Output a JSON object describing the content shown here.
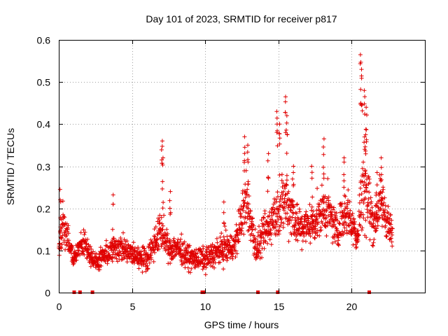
{
  "chart_data": {
    "type": "scatter",
    "title": "Day 101 of 2023, SRMTID for receiver p817",
    "xlabel": "GPS time / hours",
    "ylabel": "SRMTID / TECUs",
    "xlim": [
      0,
      25
    ],
    "ylim": [
      0,
      0.6
    ],
    "xticks": [
      0,
      5,
      10,
      15,
      20
    ],
    "yticks": [
      0,
      0.1,
      0.2,
      0.3,
      0.4,
      0.5,
      0.6
    ],
    "xtick_labels": [
      "0",
      "5",
      "10",
      "15",
      "20"
    ],
    "ytick_labels": [
      "0",
      "0.1",
      "0.2",
      "0.3",
      "0.4",
      "0.5",
      "0.6"
    ],
    "grid": true,
    "marker": "+",
    "color": "#e00000",
    "series": [
      {
        "name": "SRMTID",
        "x_range": [
          0,
          22.8
        ],
        "envelope": [
          {
            "x": 0.0,
            "base": 0.09,
            "spread": 0.05
          },
          {
            "x": 0.3,
            "base": 0.17,
            "spread": 0.07
          },
          {
            "x": 1.0,
            "base": 0.08,
            "spread": 0.03
          },
          {
            "x": 1.7,
            "base": 0.12,
            "spread": 0.04
          },
          {
            "x": 2.5,
            "base": 0.07,
            "spread": 0.03
          },
          {
            "x": 4.0,
            "base": 0.11,
            "spread": 0.05
          },
          {
            "x": 5.0,
            "base": 0.09,
            "spread": 0.04
          },
          {
            "x": 6.0,
            "base": 0.08,
            "spread": 0.04
          },
          {
            "x": 7.0,
            "base": 0.15,
            "spread": 0.07
          },
          {
            "x": 7.5,
            "base": 0.1,
            "spread": 0.04
          },
          {
            "x": 8.0,
            "base": 0.11,
            "spread": 0.05
          },
          {
            "x": 9.0,
            "base": 0.08,
            "spread": 0.04
          },
          {
            "x": 10.0,
            "base": 0.08,
            "spread": 0.04
          },
          {
            "x": 11.0,
            "base": 0.1,
            "spread": 0.05
          },
          {
            "x": 12.0,
            "base": 0.11,
            "spread": 0.05
          },
          {
            "x": 12.8,
            "base": 0.22,
            "spread": 0.1
          },
          {
            "x": 13.5,
            "base": 0.1,
            "spread": 0.05
          },
          {
            "x": 14.5,
            "base": 0.17,
            "spread": 0.08
          },
          {
            "x": 15.5,
            "base": 0.22,
            "spread": 0.11
          },
          {
            "x": 16.5,
            "base": 0.15,
            "spread": 0.07
          },
          {
            "x": 17.5,
            "base": 0.17,
            "spread": 0.07
          },
          {
            "x": 18.2,
            "base": 0.2,
            "spread": 0.09
          },
          {
            "x": 19.0,
            "base": 0.15,
            "spread": 0.06
          },
          {
            "x": 19.6,
            "base": 0.2,
            "spread": 0.09
          },
          {
            "x": 20.4,
            "base": 0.13,
            "spread": 0.05
          },
          {
            "x": 20.8,
            "base": 0.27,
            "spread": 0.17
          },
          {
            "x": 21.5,
            "base": 0.16,
            "spread": 0.07
          },
          {
            "x": 22.0,
            "base": 0.22,
            "spread": 0.09
          },
          {
            "x": 22.8,
            "base": 0.13,
            "spread": 0.05
          }
        ],
        "peaks": [
          {
            "x": 0.1,
            "y": 0.245
          },
          {
            "x": 3.7,
            "y": 0.232
          },
          {
            "x": 7.05,
            "y": 0.36
          },
          {
            "x": 7.1,
            "y": 0.32
          },
          {
            "x": 7.6,
            "y": 0.24
          },
          {
            "x": 11.3,
            "y": 0.215
          },
          {
            "x": 12.7,
            "y": 0.37
          },
          {
            "x": 12.9,
            "y": 0.35
          },
          {
            "x": 14.3,
            "y": 0.33
          },
          {
            "x": 14.9,
            "y": 0.43
          },
          {
            "x": 15.1,
            "y": 0.4
          },
          {
            "x": 15.5,
            "y": 0.465
          },
          {
            "x": 15.6,
            "y": 0.42
          },
          {
            "x": 16.0,
            "y": 0.3
          },
          {
            "x": 17.3,
            "y": 0.3
          },
          {
            "x": 18.1,
            "y": 0.365
          },
          {
            "x": 19.5,
            "y": 0.32
          },
          {
            "x": 20.6,
            "y": 0.565
          },
          {
            "x": 20.7,
            "y": 0.53
          },
          {
            "x": 20.9,
            "y": 0.48
          },
          {
            "x": 21.0,
            "y": 0.44
          },
          {
            "x": 20.95,
            "y": 0.375
          },
          {
            "x": 21.7,
            "y": 0.285
          },
          {
            "x": 22.0,
            "y": 0.32
          }
        ],
        "zero_points": [
          1.05,
          1.45,
          2.3,
          9.8,
          9.9,
          13.6,
          14.95,
          21.2
        ]
      }
    ]
  }
}
